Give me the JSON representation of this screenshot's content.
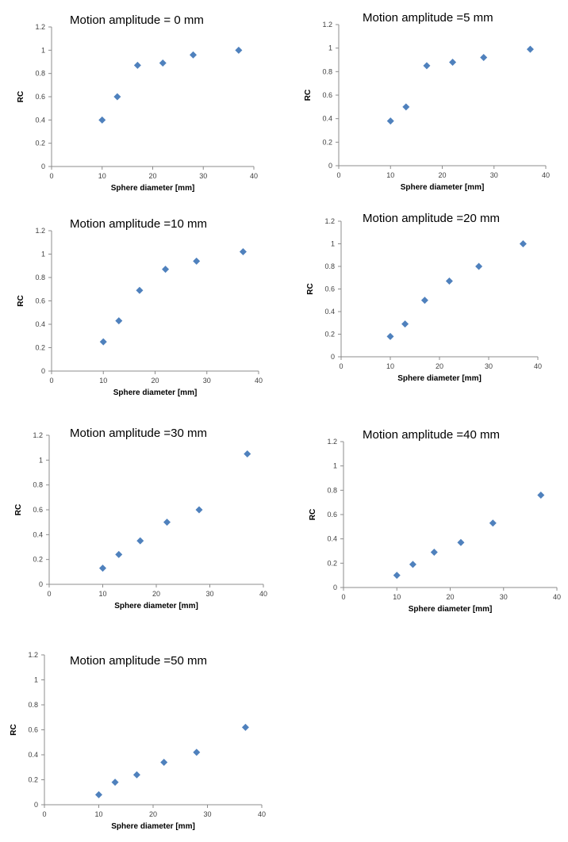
{
  "chart_data": [
    {
      "type": "scatter",
      "title": "Motion amplitude = 0 mm",
      "xlabel": "Sphere diameter [mm]",
      "ylabel": "RC",
      "xlim": [
        0,
        40
      ],
      "ylim": [
        0,
        1.2
      ],
      "xticks": [
        "0",
        "10",
        "20",
        "30",
        "40"
      ],
      "yticks": [
        "0",
        "0.2",
        "0.4",
        "0.6",
        "0.8",
        "1",
        "1.2"
      ],
      "series": [
        {
          "color": "#4f81bd",
          "x": [
            10,
            13,
            17,
            22,
            28,
            37
          ],
          "y": [
            0.4,
            0.6,
            0.87,
            0.89,
            0.96,
            1.0
          ]
        }
      ]
    },
    {
      "type": "scatter",
      "title": "Motion amplitude =5 mm",
      "xlabel": "Sphere diameter [mm]",
      "ylabel": "RC",
      "xlim": [
        0,
        40
      ],
      "ylim": [
        0,
        1.2
      ],
      "xticks": [
        "0",
        "10",
        "20",
        "30",
        "40"
      ],
      "yticks": [
        "0",
        "0.2",
        "0.4",
        "0.6",
        "0.8",
        "1",
        "1.2"
      ],
      "series": [
        {
          "color": "#4f81bd",
          "x": [
            10,
            13,
            17,
            22,
            28,
            37
          ],
          "y": [
            0.38,
            0.5,
            0.85,
            0.88,
            0.92,
            0.99
          ]
        }
      ]
    },
    {
      "type": "scatter",
      "title": "Motion amplitude =10 mm",
      "xlabel": "Sphere diameter [mm]",
      "ylabel": "RC",
      "xlim": [
        0,
        40
      ],
      "ylim": [
        0,
        1.2
      ],
      "xticks": [
        "0",
        "10",
        "20",
        "30",
        "40"
      ],
      "yticks": [
        "0",
        "0.2",
        "0.4",
        "0.6",
        "0.8",
        "1",
        "1.2"
      ],
      "series": [
        {
          "color": "#4f81bd",
          "x": [
            10,
            13,
            17,
            22,
            28,
            37
          ],
          "y": [
            0.25,
            0.43,
            0.69,
            0.87,
            0.94,
            1.02
          ]
        }
      ]
    },
    {
      "type": "scatter",
      "title": "Motion amplitude =20 mm",
      "xlabel": "Sphere diameter [mm]",
      "ylabel": "RC",
      "xlim": [
        0,
        40
      ],
      "ylim": [
        0,
        1.2
      ],
      "xticks": [
        "0",
        "10",
        "20",
        "30",
        "40"
      ],
      "yticks": [
        "0",
        "0.2",
        "0.4",
        "0.6",
        "0.8",
        "1",
        "1.2"
      ],
      "series": [
        {
          "color": "#4f81bd",
          "x": [
            10,
            13,
            17,
            22,
            28,
            37
          ],
          "y": [
            0.18,
            0.29,
            0.5,
            0.67,
            0.8,
            1.0
          ]
        }
      ]
    },
    {
      "type": "scatter",
      "title": "Motion amplitude =30 mm",
      "xlabel": "Sphere diameter [mm]",
      "ylabel": "RC",
      "xlim": [
        0,
        40
      ],
      "ylim": [
        0,
        1.2
      ],
      "xticks": [
        "0",
        "10",
        "20",
        "30",
        "40"
      ],
      "yticks": [
        "0",
        "0.2",
        "0.4",
        "0.6",
        "0.8",
        "1",
        "1.2"
      ],
      "series": [
        {
          "color": "#4f81bd",
          "x": [
            10,
            13,
            17,
            22,
            28,
            37
          ],
          "y": [
            0.13,
            0.24,
            0.35,
            0.5,
            0.6,
            1.05
          ]
        }
      ]
    },
    {
      "type": "scatter",
      "title": "Motion amplitude =40 mm",
      "xlabel": "Sphere diameter [mm]",
      "ylabel": "RC",
      "xlim": [
        0,
        40
      ],
      "ylim": [
        0,
        1.2
      ],
      "xticks": [
        "0",
        "10",
        "20",
        "30",
        "40"
      ],
      "yticks": [
        "0",
        "0.2",
        "0.4",
        "0.6",
        "0.8",
        "1",
        "1.2"
      ],
      "series": [
        {
          "color": "#4f81bd",
          "x": [
            10,
            13,
            17,
            22,
            28,
            37
          ],
          "y": [
            0.1,
            0.19,
            0.29,
            0.37,
            0.53,
            0.76
          ]
        }
      ]
    },
    {
      "type": "scatter",
      "title": "Motion amplitude =50 mm",
      "xlabel": "Sphere diameter [mm]",
      "ylabel": "RC",
      "xlim": [
        0,
        40
      ],
      "ylim": [
        0,
        1.2
      ],
      "xticks": [
        "0",
        "10",
        "20",
        "30",
        "40"
      ],
      "yticks": [
        "0",
        "0.2",
        "0.4",
        "0.6",
        "0.8",
        "1",
        "1.2"
      ],
      "series": [
        {
          "color": "#4f81bd",
          "x": [
            10,
            13,
            17,
            22,
            28,
            37
          ],
          "y": [
            0.08,
            0.18,
            0.24,
            0.34,
            0.42,
            0.62
          ]
        }
      ]
    }
  ]
}
